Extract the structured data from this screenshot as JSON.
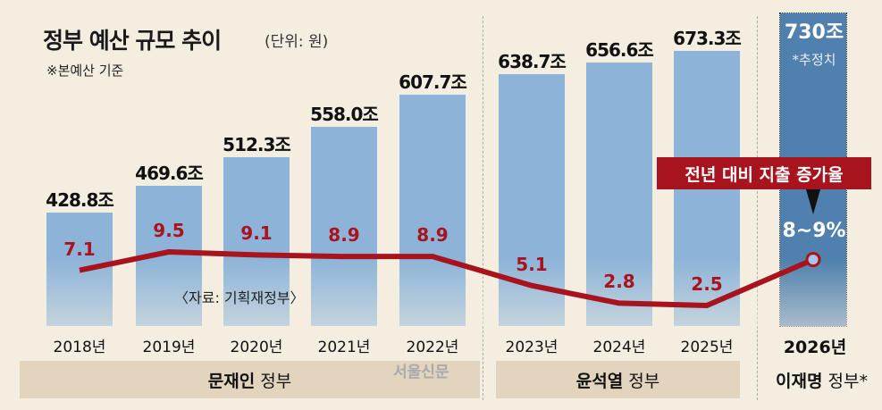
{
  "chart_data": {
    "type": "bar",
    "title": "정부 예산 규모 추이",
    "unit": "(단위: 원)",
    "note": "※본예산 기준",
    "categories": [
      "2018년",
      "2019년",
      "2020년",
      "2021년",
      "2022년",
      "2023년",
      "2024년",
      "2025년",
      "2026년"
    ],
    "series": [
      {
        "name": "예산 규모",
        "values": [
          428.8,
          469.6,
          512.3,
          558.0,
          607.7,
          638.7,
          656.6,
          673.3,
          730
        ],
        "labels": [
          "428.8조",
          "469.6조",
          "512.3조",
          "558.0조",
          "607.7조",
          "638.7조",
          "656.6조",
          "673.3조",
          "730조"
        ]
      },
      {
        "name": "전년 대비 지출 증가율",
        "type": "line",
        "values": [
          7.1,
          9.5,
          9.1,
          8.9,
          8.9,
          5.1,
          2.8,
          2.5,
          8.5
        ],
        "labels": [
          "7.1",
          "9.5",
          "9.1",
          "8.9",
          "8.9",
          "5.1",
          "2.8",
          "2.5",
          "8~9%"
        ]
      }
    ],
    "estimate_note": "*추정치",
    "line_legend": "전년 대비 지출 증가율",
    "source": "〈자료: 기획재정부〉",
    "governments": [
      {
        "name": "문재인",
        "suffix": "정부"
      },
      {
        "name": "윤석열",
        "suffix": "정부"
      },
      {
        "name": "이재명",
        "suffix": "정부*"
      }
    ],
    "watermark": "서울신문",
    "colors": {
      "bar": "#8db4d8",
      "bar_estimate": "#4f80ae",
      "line": "#a8141e",
      "background": "#f4eee1"
    }
  }
}
